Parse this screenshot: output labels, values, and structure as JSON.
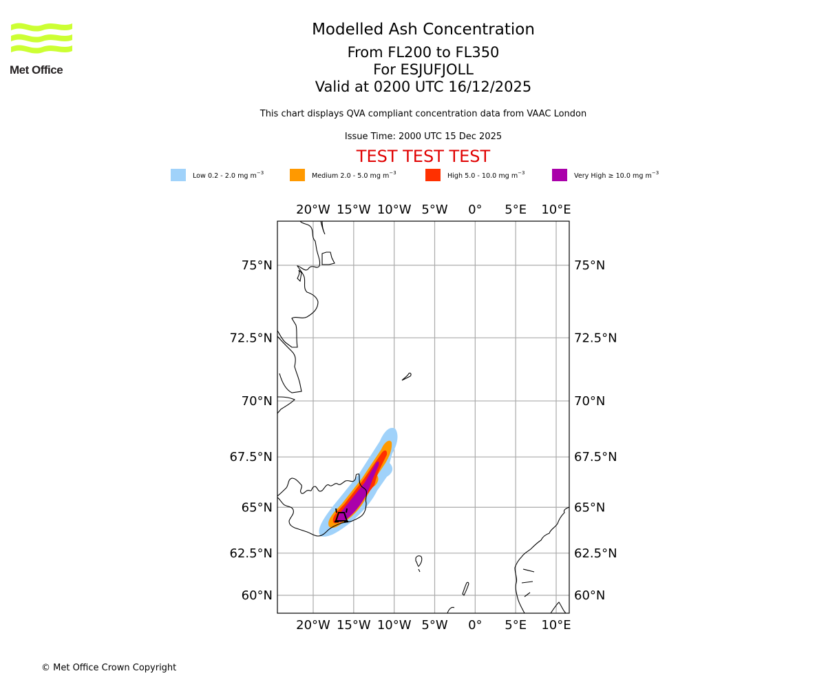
{
  "logo": {
    "name": "Met Office",
    "wave_color": "#ccff33"
  },
  "title": {
    "main": "Modelled Ash Concentration",
    "levels": "From FL200 to FL350",
    "volcano": "For ESJUFJOLL",
    "valid": "Valid at 0200 UTC 16/12/2025"
  },
  "description": "This chart displays QVA compliant concentration data from VAAC London",
  "issue_time": "Issue Time: 2000 UTC 15 Dec 2025",
  "test_banner": {
    "text": "TEST TEST TEST",
    "color": "#e00000"
  },
  "legend": [
    {
      "label": "Low 0.2 - 2.0 mg m",
      "unit_exp": "−3",
      "color": "#a0d2fa"
    },
    {
      "label": "Medium 2.0 - 5.0 mg m",
      "unit_exp": "−3",
      "color": "#ff9900"
    },
    {
      "label": "High 5.0 - 10.0 mg m",
      "unit_exp": "−3",
      "color": "#ff3000"
    },
    {
      "label": "Very High ≥ 10.0 mg m",
      "unit_exp": "−3",
      "color": "#aa00aa"
    }
  ],
  "map": {
    "extent": {
      "lon": [
        -24.5,
        11.5
      ],
      "lat": [
        59.5,
        76.5
      ]
    },
    "lon_ticks": [
      {
        "value": -20,
        "label": "20°W"
      },
      {
        "value": -15,
        "label": "15°W"
      },
      {
        "value": -10,
        "label": "10°W"
      },
      {
        "value": -5,
        "label": "5°W"
      },
      {
        "value": 0,
        "label": "0°"
      },
      {
        "value": 5,
        "label": "5°E"
      },
      {
        "value": 10,
        "label": "10°E"
      }
    ],
    "lat_ticks": [
      {
        "value": 75,
        "label": "75°N"
      },
      {
        "value": 72.5,
        "label": "72.5°N"
      },
      {
        "value": 70,
        "label": "70°N"
      },
      {
        "value": 67.5,
        "label": "67.5°N"
      },
      {
        "value": 65,
        "label": "65°N"
      },
      {
        "value": 62.5,
        "label": "62.5°N"
      },
      {
        "value": 60,
        "label": "60°N"
      }
    ],
    "grid_color": "#aaaaaa",
    "volcano_symbol": {
      "name": "Esjufjoll",
      "lon": -16.6,
      "lat": 64.3
    },
    "ash_plume": {
      "levels": [
        "low",
        "medium",
        "high",
        "very_high"
      ],
      "axis_from": {
        "lon": -17.0,
        "lat": 64.1
      },
      "axis_to": {
        "lon": -10.5,
        "lat": 68.3
      }
    }
  },
  "copyright": "© Met Office Crown Copyright"
}
